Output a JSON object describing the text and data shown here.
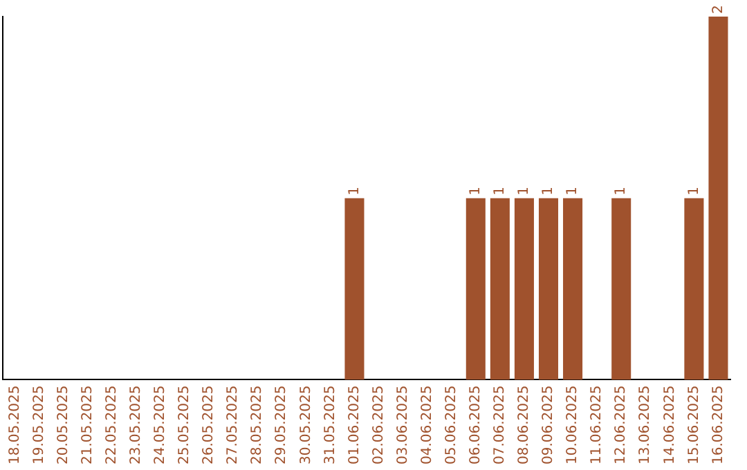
{
  "chart_data": {
    "type": "bar",
    "categories": [
      "18.05.2025",
      "19.05.2025",
      "20.05.2025",
      "21.05.2025",
      "22.05.2025",
      "23.05.2025",
      "24.05.2025",
      "25.05.2025",
      "26.05.2025",
      "27.05.2025",
      "28.05.2025",
      "29.05.2025",
      "30.05.2025",
      "31.05.2025",
      "01.06.2025",
      "02.06.2025",
      "03.06.2025",
      "04.06.2025",
      "05.06.2025",
      "06.06.2025",
      "07.06.2025",
      "08.06.2025",
      "09.06.2025",
      "10.06.2025",
      "11.06.2025",
      "12.06.2025",
      "13.06.2025",
      "14.06.2025",
      "15.06.2025",
      "16.06.2025"
    ],
    "values": [
      null,
      null,
      null,
      null,
      null,
      null,
      null,
      null,
      null,
      null,
      null,
      null,
      null,
      null,
      1,
      null,
      null,
      null,
      null,
      1,
      1,
      1,
      1,
      1,
      null,
      1,
      null,
      null,
      1,
      2
    ],
    "value_labels": [
      null,
      null,
      null,
      null,
      null,
      null,
      null,
      null,
      null,
      null,
      null,
      null,
      null,
      null,
      "1",
      null,
      null,
      null,
      null,
      "1",
      "1",
      "1",
      "1",
      "1",
      null,
      "1",
      null,
      null,
      "1",
      "2"
    ],
    "color": "#a0522d",
    "ylim": [
      0,
      2
    ],
    "tick_labels": "x",
    "grid": false,
    "legend": false
  }
}
